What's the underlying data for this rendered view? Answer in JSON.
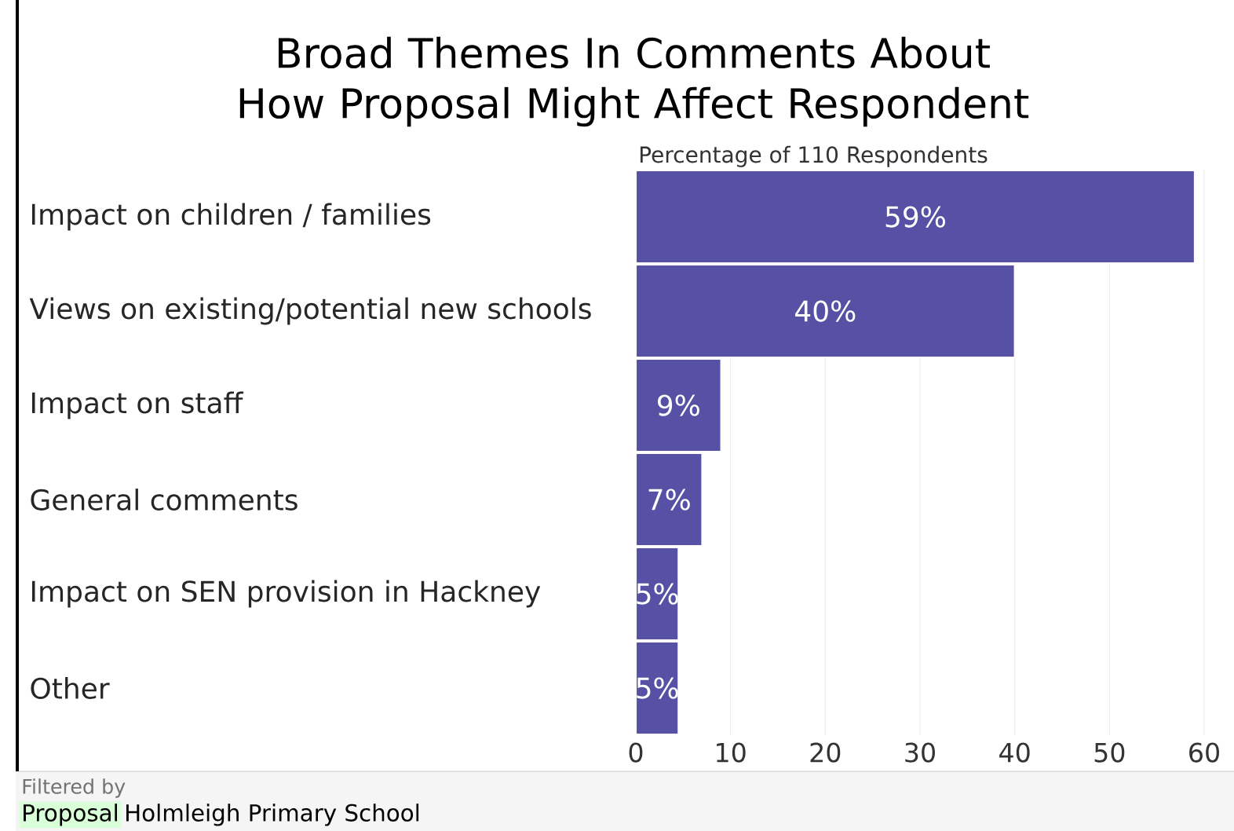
{
  "chart_data": {
    "type": "bar",
    "orientation": "horizontal",
    "title": "Broad Themes In Comments About How Proposal Might Affect Respondent",
    "xlabel": "Percentage of 110 Respondents",
    "categories": [
      "Impact on children / families",
      "Views on existing/potential new schools",
      "Impact on staff",
      "General comments",
      "Impact on SEN provision in Hackney",
      "Other"
    ],
    "values": [
      59,
      40,
      9,
      7,
      4.5,
      4.5
    ],
    "value_labels": [
      "59%",
      "40%",
      "9%",
      "7%",
      "5%",
      "5%"
    ],
    "color": "#5651a5",
    "xlim": [
      0,
      60
    ],
    "xticks": [
      0,
      10,
      20,
      30,
      40,
      50,
      60
    ],
    "grid": "x",
    "annotations": [
      "Filtered by",
      "Proposal",
      "Holmleigh Primary School"
    ]
  }
}
